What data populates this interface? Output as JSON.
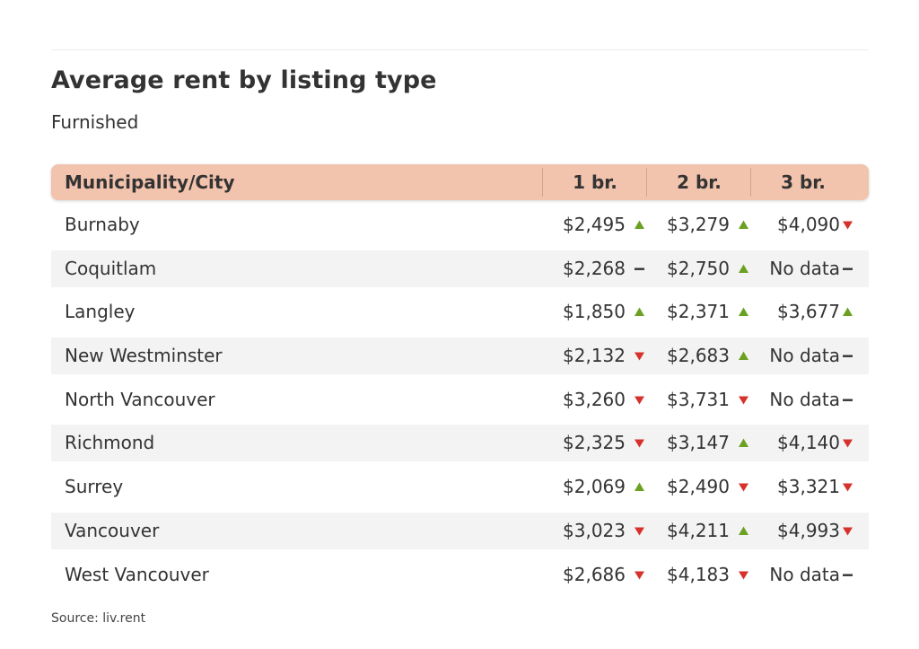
{
  "title": "Average rent by listing type",
  "subtitle": "Furnished",
  "source": "Source: liv.rent",
  "colors": {
    "header_bg": "#f2c3ad",
    "up": "#6aa121",
    "down": "#d6312b",
    "flat": "#333333",
    "row_alt": "#f3f3f3"
  },
  "chart_data": {
    "type": "table",
    "title": "Average rent by listing type",
    "subtitle": "Furnished",
    "columns": [
      "Municipality/City",
      "1 br.",
      "2 br.",
      "3 br."
    ],
    "rows": [
      {
        "city": "Burnaby",
        "cells": [
          {
            "value": "$2,495",
            "trend": "up"
          },
          {
            "value": "$3,279",
            "trend": "up"
          },
          {
            "value": "$4,090",
            "trend": "down"
          }
        ]
      },
      {
        "city": "Coquitlam",
        "cells": [
          {
            "value": "$2,268",
            "trend": "flat"
          },
          {
            "value": "$2,750",
            "trend": "up"
          },
          {
            "value": "No data",
            "trend": "flat"
          }
        ]
      },
      {
        "city": "Langley",
        "cells": [
          {
            "value": "$1,850",
            "trend": "up"
          },
          {
            "value": "$2,371",
            "trend": "up"
          },
          {
            "value": "$3,677",
            "trend": "up"
          }
        ]
      },
      {
        "city": "New Westminster",
        "cells": [
          {
            "value": "$2,132",
            "trend": "down"
          },
          {
            "value": "$2,683",
            "trend": "up"
          },
          {
            "value": "No data",
            "trend": "flat"
          }
        ]
      },
      {
        "city": "North Vancouver",
        "cells": [
          {
            "value": "$3,260",
            "trend": "down"
          },
          {
            "value": "$3,731",
            "trend": "down"
          },
          {
            "value": "No data",
            "trend": "flat"
          }
        ]
      },
      {
        "city": "Richmond",
        "cells": [
          {
            "value": "$2,325",
            "trend": "down"
          },
          {
            "value": "$3,147",
            "trend": "up"
          },
          {
            "value": "$4,140",
            "trend": "down"
          }
        ]
      },
      {
        "city": "Surrey",
        "cells": [
          {
            "value": "$2,069",
            "trend": "up"
          },
          {
            "value": "$2,490",
            "trend": "down"
          },
          {
            "value": "$3,321",
            "trend": "down"
          }
        ]
      },
      {
        "city": "Vancouver",
        "cells": [
          {
            "value": "$3,023",
            "trend": "down"
          },
          {
            "value": "$4,211",
            "trend": "up"
          },
          {
            "value": "$4,993",
            "trend": "down"
          }
        ]
      },
      {
        "city": "West Vancouver",
        "cells": [
          {
            "value": "$2,686",
            "trend": "down"
          },
          {
            "value": "$4,183",
            "trend": "down"
          },
          {
            "value": "No data",
            "trend": "flat"
          }
        ]
      }
    ]
  }
}
